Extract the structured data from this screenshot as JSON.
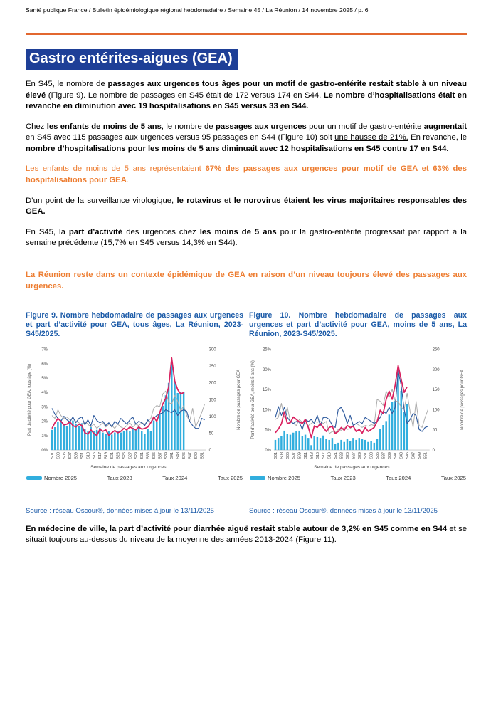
{
  "page": {
    "header": "Santé publique France / Bulletin épidémiologique régional hebdomadaire / Semaine 45 / La Réunion / 14 novembre 2025 / p. 6",
    "title": "Gastro entérites-aigues (GEA)"
  },
  "colors": {
    "accent_orange": "#E2672F",
    "text_orange": "#ED7D31",
    "title_blue_bg": "#1E3F97",
    "caption_blue": "#1C5BA8",
    "bar_cyan": "#31AEDE",
    "line_gray": "#ABABAB",
    "line_blue": "#2F5B9E",
    "line_pink": "#D9215F"
  },
  "paragraphs": [
    {
      "runs": [
        {
          "t": "En S45, le nombre de "
        },
        {
          "t": "passages aux urgences tous âges pour un motif de gastro-entérite restait stable à un niveau élevé",
          "b": 1
        },
        {
          "t": " (Figure 9). Le nombre de passages en S45 était de 172 versus 174 en S44. "
        },
        {
          "t": "Le nombre d’hospitalisations était en revanche en diminution avec 19 hospitalisations en S45 versus 33 en S44.",
          "b": 1
        }
      ]
    },
    {
      "runs": [
        {
          "t": "Chez "
        },
        {
          "t": "les enfants de moins de 5 ans",
          "b": 1
        },
        {
          "t": ", le nombre de "
        },
        {
          "t": "passages aux urgences",
          "b": 1
        },
        {
          "t": " pour un motif de gastro-entérite "
        },
        {
          "t": "augmentait",
          "b": 1
        },
        {
          "t": " en S45 avec 115 passages aux urgences versus 95 passages en S44 (Figure 10) soit "
        },
        {
          "t": "une hausse de 21%.",
          "u": 1
        },
        {
          "t": " En revanche, le "
        },
        {
          "t": "nombre d’hospitalisations pour les moins de 5 ans diminuait avec 12 hospitalisations en S45 contre 17 en S44.",
          "b": 1
        }
      ]
    },
    {
      "color": "#ED7D31",
      "runs": [
        {
          "t": "Les enfants de moins de 5 ans représentaient "
        },
        {
          "t": "67% des passages aux urgences pour motif de GEA et 63% des hospitalisations pour GEA",
          "b": 1
        },
        {
          "t": "."
        }
      ]
    },
    {
      "runs": [
        {
          "t": "D’un point de la surveillance virologique, "
        },
        {
          "t": "le rotavirus",
          "b": 1
        },
        {
          "t": " et "
        },
        {
          "t": "le norovirus étaient les virus majoritaires responsables des GEA.",
          "b": 1
        }
      ]
    },
    {
      "runs": [
        {
          "t": "En S45, la "
        },
        {
          "t": "part d’activité",
          "b": 1
        },
        {
          "t": " des urgences chez "
        },
        {
          "t": "les moins de 5 ans",
          "b": 1
        },
        {
          "t": " pour la gastro-entérite progressait par rapport à la semaine précédente (15,7% en S45 versus 14,3% en S44)."
        }
      ]
    },
    {
      "color": "#ED7D31",
      "runs": [
        {
          "t": "La Réunion reste dans un contexte épidémique de GEA en raison d’un niveau toujours élevé des passages aux urgences.",
          "b": 1
        }
      ]
    },
    {
      "runs": [
        {
          "t": "En médecine de ville, la part d’activité pour diarrhée aiguë restait stable autour de 3,2% en S45 comme en S44",
          "b": 1
        },
        {
          "t": " et se situait toujours au-dessus du niveau de la moyenne des années 2013-2024 (Figure 11)."
        }
      ]
    }
  ],
  "chart_data": [
    {
      "type": "bar+line",
      "title": "Figure 9. Nombre hebdomadaire de passages aux urgences et part d’activité pour GEA, tous âges, La Réunion, 2023-S45/2025.",
      "xlabel": "Semaine de passages aux urgences",
      "ylabel_left": "Part d'activité pour GEA, tous âge (%)",
      "ylabel_right": "Nombre de passages pour GEA",
      "left_max": 7,
      "left_step": 1,
      "left_ticks": [
        "0%",
        "1%",
        "2%",
        "3%",
        "4%",
        "5%",
        "6%",
        "7%"
      ],
      "right_max": 300,
      "right_step": 50,
      "right_ticks": [
        "0",
        "50",
        "100",
        "150",
        "200",
        "250",
        "300"
      ],
      "x_ticks": [
        "S01",
        "S03",
        "S05",
        "S07",
        "S09",
        "S11",
        "S13",
        "S15",
        "S17",
        "S19",
        "S21",
        "S23",
        "S25",
        "S27",
        "S29",
        "S31",
        "S33",
        "S35",
        "S37",
        "S39",
        "S41",
        "S43",
        "S45",
        "S47",
        "S49",
        "S51"
      ],
      "bars": {
        "name": "Nombre 2025",
        "color": "#31AEDE",
        "axis": "right",
        "values": [
          60,
          68,
          85,
          90,
          75,
          72,
          82,
          88,
          78,
          72,
          80,
          62,
          55,
          68,
          57,
          60,
          66,
          52,
          48,
          57,
          46,
          52,
          57,
          52,
          57,
          62,
          57,
          66,
          60,
          70,
          57,
          48,
          62,
          57,
          88,
          85,
          110,
          132,
          163,
          200,
          270,
          205,
          170,
          174,
          172
        ]
      },
      "lines": [
        {
          "name": "Taux 2023",
          "color": "#ABABAB",
          "w": 1,
          "values": [
            2.4,
            2.2,
            2.8,
            2.4,
            2.2,
            2.3,
            2.1,
            2.2,
            2.0,
            1.9,
            1.7,
            2.0,
            1.8,
            1.6,
            1.8,
            1.5,
            1.7,
            1.9,
            1.6,
            1.8,
            1.7,
            1.5,
            1.8,
            1.6,
            1.5,
            1.7,
            1.9,
            1.6,
            1.8,
            1.7,
            1.9,
            1.8,
            2.0,
            2.2,
            2.9,
            3.1,
            3.0,
            3.9,
            4.1,
            3.3,
            3.2,
            3.8,
            3.4,
            2.7,
            3.1,
            2.4,
            2.0,
            2.9,
            1.6,
            2.1,
            2.6,
            3.2
          ]
        },
        {
          "name": "Taux 2024",
          "color": "#2F5B9E",
          "w": 1.2,
          "values": [
            2.9,
            2.5,
            2.2,
            2.0,
            2.35,
            2.1,
            1.95,
            2.3,
            1.9,
            2.2,
            2.3,
            1.75,
            2.1,
            1.7,
            2.4,
            2.05,
            1.9,
            2.0,
            1.7,
            1.9,
            1.6,
            2.0,
            1.8,
            2.2,
            2.0,
            1.8,
            2.1,
            2.3,
            1.8,
            2.0,
            1.9,
            1.7,
            2.1,
            1.9,
            2.2,
            2.4,
            2.5,
            2.6,
            2.8,
            2.7,
            2.6,
            2.8,
            2.4,
            2.7,
            2.8,
            2.7,
            2.0,
            1.7,
            1.5,
            1.5,
            2.2,
            2.1
          ]
        },
        {
          "name": "Taux 2025",
          "color": "#D9215F",
          "w": 1.8,
          "values": [
            1.5,
            1.9,
            2.2,
            2.0,
            1.75,
            1.8,
            1.95,
            1.7,
            1.6,
            1.8,
            1.7,
            1.2,
            1.1,
            1.4,
            1.15,
            1.0,
            1.45,
            1.3,
            1.4,
            1.0,
            1.2,
            1.35,
            1.2,
            1.3,
            1.5,
            1.4,
            1.6,
            1.5,
            1.4,
            1.6,
            1.45,
            1.5,
            1.6,
            1.9,
            2.3,
            2.0,
            2.6,
            3.2,
            3.6,
            4.4,
            6.4,
            4.8,
            4.2,
            3.9,
            4.0
          ]
        }
      ],
      "source": "Source : réseau Oscour®, données mises à jour le 13/11/2025"
    },
    {
      "type": "bar+line",
      "title": "Figure 10. Nombre hebdomadaire de passages aux urgences et part d’activité pour GEA, moins de 5 ans, La Réunion, 2023-S45/2025.",
      "xlabel": "Semaine de passages aux urgences",
      "ylabel_left": "Part d'activité pour GEA, moins 5 ans (%)",
      "ylabel_right": "Nombre de passages pour GEA",
      "left_max": 25,
      "left_step": 5,
      "left_ticks": [
        "0%",
        "5%",
        "10%",
        "15%",
        "20%",
        "25%"
      ],
      "right_max": 250,
      "right_step": 50,
      "right_ticks": [
        "0",
        "50",
        "100",
        "150",
        "200",
        "250"
      ],
      "x_ticks": [
        "S01",
        "S03",
        "S05",
        "S07",
        "S09",
        "S11",
        "S13",
        "S15",
        "S17",
        "S19",
        "S21",
        "S23",
        "S25",
        "S27",
        "S29",
        "S31",
        "S33",
        "S35",
        "S37",
        "S39",
        "S41",
        "S43",
        "S45",
        "S47",
        "S49",
        "S51"
      ],
      "bars": {
        "name": "Nombre 2025",
        "color": "#31AEDE",
        "axis": "right",
        "values": [
          25,
          30,
          35,
          48,
          40,
          38,
          43,
          46,
          48,
          35,
          38,
          30,
          12,
          35,
          32,
          30,
          36,
          28,
          25,
          30,
          15,
          18,
          25,
          20,
          28,
          22,
          30,
          25,
          30,
          28,
          25,
          20,
          22,
          18,
          28,
          52,
          62,
          72,
          88,
          120,
          122,
          200,
          147,
          95,
          115
        ]
      },
      "lines": [
        {
          "name": "Taux 2023",
          "color": "#ABABAB",
          "w": 1,
          "values": [
            7.6,
            8.1,
            11.6,
            8.1,
            10.6,
            7.1,
            6.6,
            6.1,
            7.6,
            6.9,
            6.6,
            6.1,
            6.6,
            7.1,
            6.9,
            7.1,
            6.6,
            7.1,
            4.1,
            4.6,
            4.3,
            5.1,
            4.9,
            5.6,
            5.1,
            5.3,
            6.1,
            6.6,
            6.1,
            5.6,
            6.1,
            5.9,
            6.3,
            6.1,
            12.6,
            12.1,
            11.1,
            14.6,
            13.1,
            15.1,
            12.1,
            12.1,
            10.6,
            10.1,
            14.1,
            9.6,
            5.6,
            12.1,
            6.1,
            5.6,
            8.1,
            10.1
          ]
        },
        {
          "name": "Taux 2024",
          "color": "#2F5B9E",
          "w": 1.2,
          "values": [
            8.1,
            10.8,
            8.6,
            10.6,
            8.1,
            7.1,
            6.6,
            7.1,
            6.9,
            5.1,
            7.6,
            7.1,
            7.6,
            6.6,
            8.6,
            6.1,
            8.1,
            8.1,
            7.6,
            6.1,
            5.6,
            10.1,
            10.6,
            9.1,
            6.6,
            8.6,
            6.1,
            6.6,
            7.1,
            6.6,
            8.1,
            7.6,
            7.1,
            6.6,
            7.1,
            8.1,
            9.6,
            9.1,
            10.6,
            9.1,
            10.6,
            19.6,
            16.1,
            10.1,
            6.6,
            7.6,
            9.1,
            8.6,
            5.1,
            4.6,
            5.6,
            5.9
          ]
        },
        {
          "name": "Taux 2025",
          "color": "#D9215F",
          "w": 1.8,
          "values": [
            4.3,
            5.2,
            6.5,
            9.5,
            6.6,
            6.8,
            8.2,
            7.6,
            7.0,
            6.6,
            7.6,
            5.6,
            3.1,
            6.0,
            5.6,
            6.6,
            5.6,
            4.6,
            5.6,
            5.9,
            4.1,
            4.6,
            5.6,
            4.9,
            6.1,
            5.6,
            5.9,
            4.6,
            5.1,
            4.2,
            5.6,
            4.6,
            5.1,
            5.6,
            7.1,
            9.9,
            9.1,
            12.6,
            14.6,
            12.6,
            16.1,
            21.0,
            17.6,
            14.3,
            15.7
          ]
        }
      ],
      "source": "Source : réseau Oscour®, données mises à jour le 13/11/2025"
    }
  ]
}
